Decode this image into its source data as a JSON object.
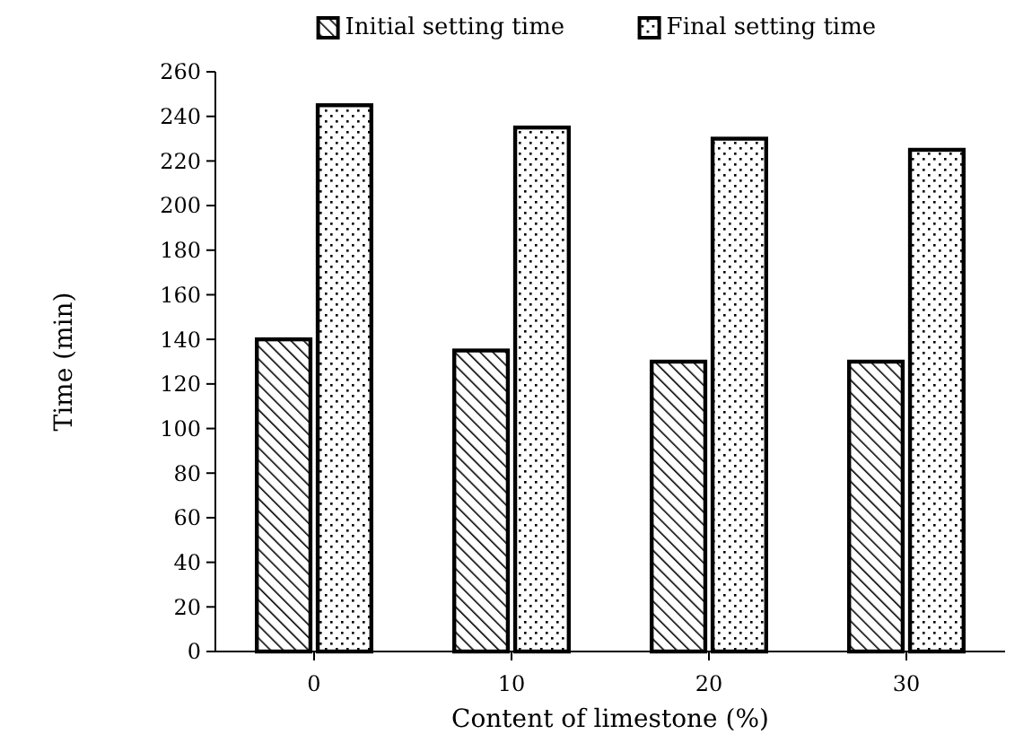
{
  "chart_data": {
    "type": "bar",
    "xlabel": "Content of limestone (%)",
    "ylabel": "Time (min)",
    "categories": [
      "0",
      "10",
      "20",
      "30"
    ],
    "series": [
      {
        "name": "Initial setting time",
        "color": "#000000",
        "values": [
          140,
          135,
          130,
          130
        ]
      },
      {
        "name": "Final setting time",
        "color": "#000000",
        "values": [
          245,
          235,
          230,
          225
        ]
      }
    ],
    "ylim": [
      0,
      260
    ],
    "yticks": [
      0,
      20,
      40,
      60,
      80,
      100,
      120,
      140,
      160,
      180,
      200,
      220,
      240,
      260
    ],
    "grid": false,
    "legend": "top"
  }
}
